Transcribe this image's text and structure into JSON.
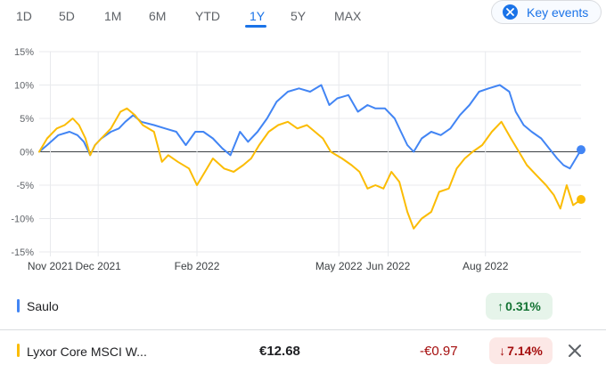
{
  "range_tabs": [
    {
      "label": "1D",
      "active": false
    },
    {
      "label": "5D",
      "active": false
    },
    {
      "label": "1M",
      "active": false
    },
    {
      "label": "6M",
      "active": false
    },
    {
      "label": "YTD",
      "active": false
    },
    {
      "label": "1Y",
      "active": true
    },
    {
      "label": "5Y",
      "active": false
    },
    {
      "label": "MAX",
      "active": false
    }
  ],
  "key_events": {
    "label": "Key events",
    "icon": "close-circle-icon"
  },
  "colors": {
    "accent": "#1a73e8",
    "series_blue": "#4285f4",
    "series_yellow": "#fbbc04",
    "positive": "#137333",
    "negative": "#a50e0e"
  },
  "chart_data": {
    "type": "line",
    "x_range": [
      "2021-10-25",
      "2022-09-30"
    ],
    "ylim": [
      -15,
      15
    ],
    "y_ticks": [
      15,
      10,
      5,
      0,
      -5,
      -10,
      -15
    ],
    "y_tick_labels": [
      "15%",
      "10%",
      "5%",
      "0%",
      "-5%",
      "-10%",
      "-15%"
    ],
    "x_ticks": [
      "2021-11-01",
      "2021-12-01",
      "2022-02-01",
      "2022-05-01",
      "2022-06-01",
      "2022-08-01"
    ],
    "x_tick_labels": [
      "Nov 2021",
      "Dec 2021",
      "Feb 2022",
      "May 2022",
      "Jun 2022",
      "Aug 2022"
    ],
    "grid": true,
    "baseline": 0,
    "series": [
      {
        "name": "Saulo",
        "color": "#4285f4",
        "points": [
          [
            "2021-10-25",
            0
          ],
          [
            "2021-10-30",
            1
          ],
          [
            "2021-11-06",
            2.5
          ],
          [
            "2021-11-13",
            3
          ],
          [
            "2021-11-18",
            2.5
          ],
          [
            "2021-11-22",
            1.5
          ],
          [
            "2021-11-26",
            -0.5
          ],
          [
            "2021-11-29",
            1
          ],
          [
            "2021-12-03",
            2
          ],
          [
            "2021-12-09",
            3
          ],
          [
            "2021-12-14",
            3.5
          ],
          [
            "2021-12-18",
            4.5
          ],
          [
            "2021-12-23",
            5.5
          ],
          [
            "2021-12-28",
            4.5
          ],
          [
            "2022-01-05",
            4
          ],
          [
            "2022-01-12",
            3.5
          ],
          [
            "2022-01-19",
            3
          ],
          [
            "2022-01-25",
            1
          ],
          [
            "2022-01-31",
            3
          ],
          [
            "2022-02-05",
            3
          ],
          [
            "2022-02-11",
            2
          ],
          [
            "2022-02-17",
            0.5
          ],
          [
            "2022-02-22",
            -0.5
          ],
          [
            "2022-02-28",
            3
          ],
          [
            "2022-03-05",
            1.5
          ],
          [
            "2022-03-11",
            3
          ],
          [
            "2022-03-17",
            5
          ],
          [
            "2022-03-23",
            7.5
          ],
          [
            "2022-03-30",
            9
          ],
          [
            "2022-04-06",
            9.5
          ],
          [
            "2022-04-13",
            9
          ],
          [
            "2022-04-20",
            10
          ],
          [
            "2022-04-25",
            7
          ],
          [
            "2022-04-30",
            8
          ],
          [
            "2022-05-07",
            8.5
          ],
          [
            "2022-05-13",
            6
          ],
          [
            "2022-05-19",
            7
          ],
          [
            "2022-05-24",
            6.5
          ],
          [
            "2022-05-30",
            6.5
          ],
          [
            "2022-06-05",
            5
          ],
          [
            "2022-06-09",
            3
          ],
          [
            "2022-06-13",
            1
          ],
          [
            "2022-06-17",
            0
          ],
          [
            "2022-06-22",
            2
          ],
          [
            "2022-06-28",
            3
          ],
          [
            "2022-07-04",
            2.5
          ],
          [
            "2022-07-10",
            3.5
          ],
          [
            "2022-07-16",
            5.5
          ],
          [
            "2022-07-22",
            7
          ],
          [
            "2022-07-28",
            9
          ],
          [
            "2022-08-03",
            9.5
          ],
          [
            "2022-08-10",
            10
          ],
          [
            "2022-08-16",
            9
          ],
          [
            "2022-08-20",
            6
          ],
          [
            "2022-08-25",
            4
          ],
          [
            "2022-08-30",
            3
          ],
          [
            "2022-09-05",
            2
          ],
          [
            "2022-09-10",
            0.5
          ],
          [
            "2022-09-15",
            -1
          ],
          [
            "2022-09-19",
            -2
          ],
          [
            "2022-09-23",
            -2.5
          ],
          [
            "2022-09-30",
            0.31
          ]
        ]
      },
      {
        "name": "Lyxor Core MSCI W...",
        "color": "#fbbc04",
        "points": [
          [
            "2021-10-25",
            0
          ],
          [
            "2021-10-30",
            2
          ],
          [
            "2021-11-05",
            3.5
          ],
          [
            "2021-11-10",
            4
          ],
          [
            "2021-11-15",
            5
          ],
          [
            "2021-11-19",
            4
          ],
          [
            "2021-11-23",
            2
          ],
          [
            "2021-11-26",
            -0.5
          ],
          [
            "2021-11-29",
            1
          ],
          [
            "2021-12-03",
            2
          ],
          [
            "2021-12-09",
            3.5
          ],
          [
            "2021-12-15",
            6
          ],
          [
            "2021-12-19",
            6.5
          ],
          [
            "2021-12-24",
            5.5
          ],
          [
            "2021-12-29",
            4
          ],
          [
            "2022-01-05",
            3
          ],
          [
            "2022-01-10",
            -1.5
          ],
          [
            "2022-01-14",
            -0.5
          ],
          [
            "2022-01-20",
            -1.5
          ],
          [
            "2022-01-27",
            -2.5
          ],
          [
            "2022-02-01",
            -5
          ],
          [
            "2022-02-06",
            -3
          ],
          [
            "2022-02-11",
            -1
          ],
          [
            "2022-02-18",
            -2.5
          ],
          [
            "2022-02-24",
            -3
          ],
          [
            "2022-03-02",
            -2
          ],
          [
            "2022-03-07",
            -1
          ],
          [
            "2022-03-12",
            1
          ],
          [
            "2022-03-18",
            3
          ],
          [
            "2022-03-24",
            4
          ],
          [
            "2022-03-30",
            4.5
          ],
          [
            "2022-04-05",
            3.5
          ],
          [
            "2022-04-11",
            4
          ],
          [
            "2022-04-16",
            3
          ],
          [
            "2022-04-21",
            2
          ],
          [
            "2022-04-26",
            0
          ],
          [
            "2022-05-03",
            -1
          ],
          [
            "2022-05-09",
            -2
          ],
          [
            "2022-05-14",
            -3
          ],
          [
            "2022-05-19",
            -5.5
          ],
          [
            "2022-05-24",
            -5
          ],
          [
            "2022-05-29",
            -5.5
          ],
          [
            "2022-06-03",
            -3
          ],
          [
            "2022-06-08",
            -4.5
          ],
          [
            "2022-06-13",
            -9
          ],
          [
            "2022-06-17",
            -11.5
          ],
          [
            "2022-06-22",
            -10
          ],
          [
            "2022-06-28",
            -9
          ],
          [
            "2022-07-03",
            -6
          ],
          [
            "2022-07-09",
            -5.5
          ],
          [
            "2022-07-14",
            -2.5
          ],
          [
            "2022-07-19",
            -1
          ],
          [
            "2022-07-24",
            0
          ],
          [
            "2022-07-30",
            1
          ],
          [
            "2022-08-05",
            3
          ],
          [
            "2022-08-11",
            4.5
          ],
          [
            "2022-08-17",
            2
          ],
          [
            "2022-08-22",
            0
          ],
          [
            "2022-08-27",
            -2
          ],
          [
            "2022-09-02",
            -3.5
          ],
          [
            "2022-09-08",
            -5
          ],
          [
            "2022-09-13",
            -6.5
          ],
          [
            "2022-09-17",
            -8.5
          ],
          [
            "2022-09-21",
            -5
          ],
          [
            "2022-09-25",
            -8
          ],
          [
            "2022-09-30",
            -7.14
          ]
        ]
      }
    ]
  },
  "legend": [
    {
      "name": "Saulo",
      "change_pct": "0.31%",
      "direction": "up",
      "arrow": "↑"
    },
    {
      "name": "Lyxor Core MSCI W...",
      "price": "€12.68",
      "change_abs": "-€0.97",
      "change_pct": "7.14%",
      "direction": "down",
      "arrow": "↓",
      "remove_icon": "close-icon"
    }
  ]
}
